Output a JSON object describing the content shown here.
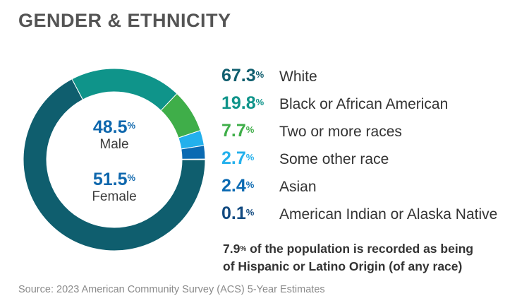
{
  "title": "GENDER & ETHNICITY",
  "gender": {
    "male": {
      "value": "48.5",
      "unit": "%",
      "label": "Male"
    },
    "female": {
      "value": "51.5",
      "unit": "%",
      "label": "Female"
    }
  },
  "chart_data": {
    "type": "pie",
    "title": "",
    "series": [
      {
        "name": "White",
        "value": 67.3,
        "display": "67.3",
        "unit": "%",
        "color": "#0f5e6e"
      },
      {
        "name": "Black or African American",
        "value": 19.8,
        "display": "19.8",
        "unit": "%",
        "color": "#0f948a"
      },
      {
        "name": "Two or more races",
        "value": 7.7,
        "display": "7.7",
        "unit": "%",
        "color": "#3fae49"
      },
      {
        "name": "Some other race",
        "value": 2.7,
        "display": "2.7",
        "unit": "%",
        "color": "#23b0ec"
      },
      {
        "name": "Asian",
        "value": 2.4,
        "display": "2.4",
        "unit": "%",
        "color": "#0b6ab2"
      },
      {
        "name": "American Indian or Alaska Native",
        "value": 0.1,
        "display": "0.1",
        "unit": "%",
        "color": "#124a80"
      }
    ]
  },
  "note": {
    "value": "7.9",
    "unit": "%",
    "line1_rest": " of the population is recorded as being",
    "line2": "of Hispanic or Latino Origin (of any race)"
  },
  "source": "Source: 2023 American Community Survey (ACS) 5-Year Estimates"
}
